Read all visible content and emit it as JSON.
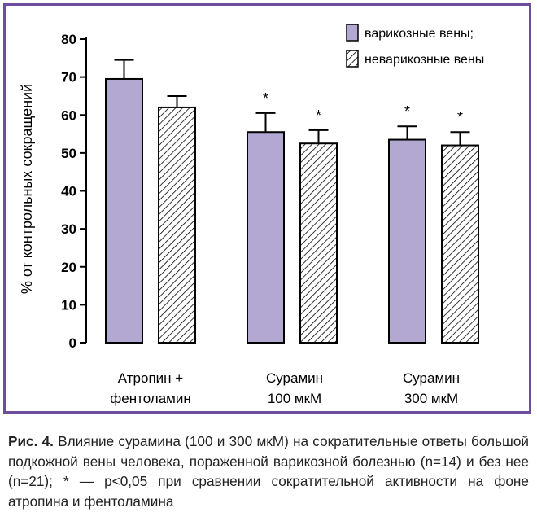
{
  "chart_data": {
    "type": "bar",
    "ylabel": "% от контрольных сокращений",
    "ylim": [
      0,
      80
    ],
    "yticks": [
      "0",
      "10",
      "20",
      "30",
      "40",
      "50",
      "60",
      "70",
      "80"
    ],
    "categories": [
      [
        "Атропин +",
        "фентоламин"
      ],
      [
        "Сурамин",
        "100 мкМ"
      ],
      [
        "Сурамин",
        "300 мкМ"
      ]
    ],
    "series": [
      {
        "name": "варикозные вены;",
        "fill": "#b3a8d2",
        "pattern": "solid",
        "values": [
          69.5,
          55.5,
          53.5
        ],
        "errors": [
          5.0,
          5.0,
          3.5
        ],
        "marks": [
          "",
          "*",
          "*"
        ]
      },
      {
        "name": "неварикозные вены",
        "fill": "#ffffff",
        "pattern": "hatched",
        "values": [
          62.0,
          52.5,
          52.0
        ],
        "errors": [
          3.0,
          3.5,
          3.5
        ],
        "marks": [
          "",
          "*",
          "*"
        ]
      }
    ],
    "legend_position": "top-right",
    "grid": false
  },
  "caption": {
    "label": "Рис. 4.",
    "text": " Влияние сурамина (100 и 300 мкМ) на сократительные ответы большой подкожной вены человека, пораженной варикозной болезнью (n=14) и без нее (n=21); * — p<0,05 при сравнении сократительной активности на фоне атропина и фентоламина"
  },
  "colors": {
    "frame": "#6b4f9e",
    "bar_solid": "#b3a8d2",
    "axis": "#000000"
  }
}
